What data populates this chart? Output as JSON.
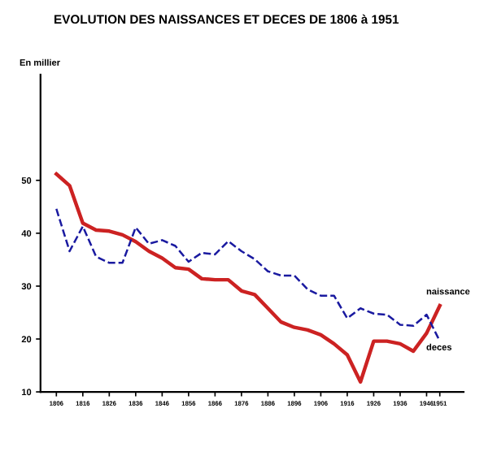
{
  "chart_data": {
    "type": "line",
    "title": "EVOLUTION DES NAISSANCES ET DECES DE 1806 à 1951",
    "ylabel": "En millier",
    "x": [
      1806,
      1811,
      1816,
      1821,
      1826,
      1831,
      1836,
      1841,
      1846,
      1851,
      1856,
      1861,
      1866,
      1871,
      1876,
      1881,
      1886,
      1891,
      1896,
      1901,
      1906,
      1911,
      1916,
      1921,
      1926,
      1931,
      1936,
      1941,
      1946,
      1951
    ],
    "series": [
      {
        "name": "naissance",
        "color": "#cc2222",
        "line_style": "solid",
        "values": [
          51.2,
          49,
          41.9,
          40.6,
          40.4,
          39.7,
          38.4,
          36.6,
          35.3,
          33.5,
          33.2,
          31.4,
          31.2,
          31.2,
          29.1,
          28.4,
          25.8,
          23.2,
          22.2,
          21.7,
          20.8,
          19.1,
          17.0,
          11.9,
          19.6,
          19.6,
          19.1,
          17.7,
          21.1,
          26.3
        ]
      },
      {
        "name": "deces",
        "color": "#1a1aa0",
        "line_style": "dashed",
        "values": [
          44.6,
          36.6,
          41.3,
          35.6,
          34.4,
          34.4,
          41.1,
          38.0,
          38.7,
          37.6,
          34.6,
          36.3,
          36.0,
          38.5,
          36.6,
          35.1,
          32.8,
          32.0,
          32.0,
          29.4,
          28.2,
          28.2,
          23.9,
          25.8,
          24.8,
          24.6,
          22.7,
          22.5,
          24.6,
          19.6
        ]
      }
    ],
    "xlim": [
      1800,
      1960
    ],
    "xticks": [
      1806,
      1816,
      1826,
      1836,
      1846,
      1856,
      1866,
      1876,
      1886,
      1896,
      1906,
      1916,
      1926,
      1936,
      1946,
      1951
    ],
    "ylim": [
      10,
      70
    ],
    "yticks": [
      10,
      20,
      30,
      40,
      50
    ],
    "grid": false,
    "legend": false
  }
}
